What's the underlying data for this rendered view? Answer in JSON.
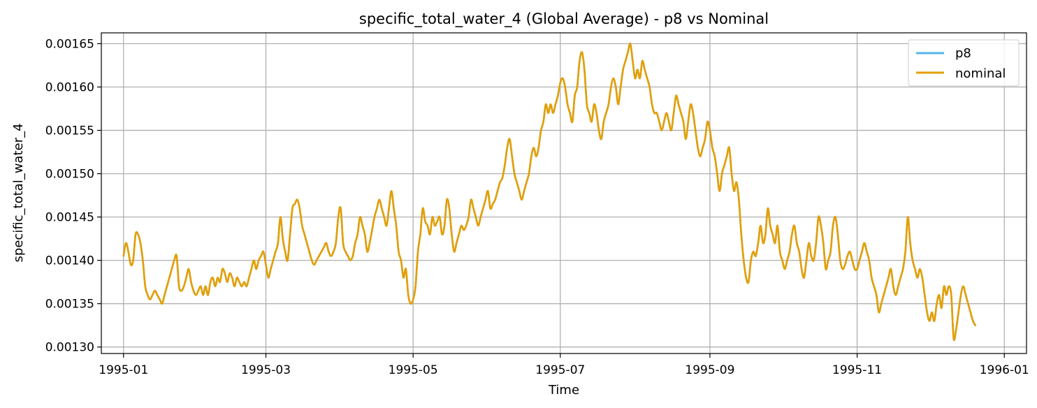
{
  "chart_data": {
    "type": "line",
    "title": "specific_total_water_4 (Global Average) - p8 vs Nominal",
    "xlabel": "Time",
    "ylabel": "specific_total_water_4",
    "xlim": [
      -9.2,
      374.2
    ],
    "ylim": [
      0.0012925,
      0.0016625
    ],
    "grid": true,
    "legend_position": "top-right",
    "x_ticks": [
      {
        "value": 0,
        "label": "1995-01"
      },
      {
        "value": 59,
        "label": "1995-03"
      },
      {
        "value": 120,
        "label": "1995-05"
      },
      {
        "value": 181,
        "label": "1995-07"
      },
      {
        "value": 243,
        "label": "1995-09"
      },
      {
        "value": 304,
        "label": "1995-11"
      },
      {
        "value": 365,
        "label": "1996-01"
      }
    ],
    "y_ticks": [
      {
        "value": 0.0013,
        "label": "0.00130"
      },
      {
        "value": 0.00135,
        "label": "0.00135"
      },
      {
        "value": 0.0014,
        "label": "0.00140"
      },
      {
        "value": 0.00145,
        "label": "0.00145"
      },
      {
        "value": 0.0015,
        "label": "0.00150"
      },
      {
        "value": 0.00155,
        "label": "0.00155"
      },
      {
        "value": 0.0016,
        "label": "0.00160"
      },
      {
        "value": 0.00165,
        "label": "0.00165"
      }
    ],
    "x_unit": "days since 1995-01-01",
    "keypoints": [
      [
        0,
        0.001405
      ],
      [
        1,
        0.00142
      ],
      [
        2,
        0.00141
      ],
      [
        3,
        0.001395
      ],
      [
        4,
        0.0014
      ],
      [
        5,
        0.00143
      ],
      [
        6,
        0.00143
      ],
      [
        7,
        0.00142
      ],
      [
        8,
        0.0014
      ],
      [
        9,
        0.00137
      ],
      [
        10,
        0.00136
      ],
      [
        11,
        0.001355
      ],
      [
        12,
        0.00136
      ],
      [
        13,
        0.001365
      ],
      [
        14,
        0.00136
      ],
      [
        15,
        0.001355
      ],
      [
        16,
        0.00135
      ],
      [
        17,
        0.00136
      ],
      [
        18,
        0.00137
      ],
      [
        19,
        0.00138
      ],
      [
        20,
        0.00139
      ],
      [
        21,
        0.0014
      ],
      [
        22,
        0.001405
      ],
      [
        23,
        0.00137
      ],
      [
        24,
        0.001365
      ],
      [
        25,
        0.00137
      ],
      [
        26,
        0.00138
      ],
      [
        27,
        0.00139
      ],
      [
        28,
        0.001375
      ],
      [
        29,
        0.001365
      ],
      [
        30,
        0.00136
      ],
      [
        31,
        0.001365
      ],
      [
        32,
        0.00137
      ],
      [
        33,
        0.00136
      ],
      [
        34,
        0.00137
      ],
      [
        35,
        0.00136
      ],
      [
        36,
        0.001375
      ],
      [
        37,
        0.00138
      ],
      [
        38,
        0.00137
      ],
      [
        39,
        0.00138
      ],
      [
        40,
        0.001375
      ],
      [
        41,
        0.00139
      ],
      [
        42,
        0.001385
      ],
      [
        43,
        0.001375
      ],
      [
        44,
        0.001385
      ],
      [
        45,
        0.00138
      ],
      [
        46,
        0.00137
      ],
      [
        47,
        0.00138
      ],
      [
        48,
        0.001375
      ],
      [
        49,
        0.00137
      ],
      [
        50,
        0.001375
      ],
      [
        51,
        0.00137
      ],
      [
        52,
        0.00138
      ],
      [
        53,
        0.00139
      ],
      [
        54,
        0.0014
      ],
      [
        55,
        0.00139
      ],
      [
        56,
        0.0014
      ],
      [
        57,
        0.001405
      ],
      [
        58,
        0.00141
      ],
      [
        59,
        0.001395
      ],
      [
        60,
        0.00138
      ],
      [
        61,
        0.00139
      ],
      [
        62,
        0.0014
      ],
      [
        63,
        0.00141
      ],
      [
        64,
        0.00142
      ],
      [
        65,
        0.00145
      ],
      [
        66,
        0.001425
      ],
      [
        67,
        0.00141
      ],
      [
        68,
        0.0014
      ],
      [
        69,
        0.00143
      ],
      [
        70,
        0.00146
      ],
      [
        71,
        0.001465
      ],
      [
        72,
        0.00147
      ],
      [
        73,
        0.00146
      ],
      [
        74,
        0.00144
      ],
      [
        75,
        0.00143
      ],
      [
        76,
        0.00142
      ],
      [
        77,
        0.00141
      ],
      [
        78,
        0.0014
      ],
      [
        79,
        0.001395
      ],
      [
        80,
        0.0014
      ],
      [
        81,
        0.001405
      ],
      [
        82,
        0.00141
      ],
      [
        83,
        0.001415
      ],
      [
        84,
        0.00142
      ],
      [
        85,
        0.00141
      ],
      [
        86,
        0.001405
      ],
      [
        87,
        0.00141
      ],
      [
        88,
        0.00142
      ],
      [
        89,
        0.00145
      ],
      [
        90,
        0.00146
      ],
      [
        91,
        0.00142
      ],
      [
        92,
        0.00141
      ],
      [
        93,
        0.001405
      ],
      [
        94,
        0.0014
      ],
      [
        95,
        0.001405
      ],
      [
        96,
        0.00142
      ],
      [
        97,
        0.00143
      ],
      [
        98,
        0.00145
      ],
      [
        99,
        0.00144
      ],
      [
        100,
        0.00143
      ],
      [
        101,
        0.00141
      ],
      [
        102,
        0.00142
      ],
      [
        103,
        0.001435
      ],
      [
        104,
        0.00145
      ],
      [
        105,
        0.00146
      ],
      [
        106,
        0.00147
      ],
      [
        107,
        0.00146
      ],
      [
        108,
        0.00145
      ],
      [
        109,
        0.00144
      ],
      [
        110,
        0.00146
      ],
      [
        111,
        0.00148
      ],
      [
        112,
        0.00146
      ],
      [
        113,
        0.00144
      ],
      [
        114,
        0.00141
      ],
      [
        115,
        0.0014
      ],
      [
        116,
        0.00138
      ],
      [
        117,
        0.00139
      ],
      [
        118,
        0.00136
      ],
      [
        119,
        0.00135
      ],
      [
        120,
        0.001355
      ],
      [
        121,
        0.00137
      ],
      [
        122,
        0.00141
      ],
      [
        123,
        0.00143
      ],
      [
        124,
        0.00146
      ],
      [
        125,
        0.001445
      ],
      [
        126,
        0.00144
      ],
      [
        127,
        0.00143
      ],
      [
        128,
        0.00145
      ],
      [
        129,
        0.00144
      ],
      [
        130,
        0.001445
      ],
      [
        131,
        0.00145
      ],
      [
        132,
        0.00143
      ],
      [
        133,
        0.00144
      ],
      [
        134,
        0.00147
      ],
      [
        135,
        0.00146
      ],
      [
        136,
        0.00143
      ],
      [
        137,
        0.00141
      ],
      [
        138,
        0.00142
      ],
      [
        139,
        0.00143
      ],
      [
        140,
        0.00144
      ],
      [
        141,
        0.001435
      ],
      [
        142,
        0.00144
      ],
      [
        143,
        0.00145
      ],
      [
        144,
        0.00147
      ],
      [
        145,
        0.00146
      ],
      [
        146,
        0.00145
      ],
      [
        147,
        0.00144
      ],
      [
        148,
        0.00145
      ],
      [
        149,
        0.00146
      ],
      [
        150,
        0.00147
      ],
      [
        151,
        0.00148
      ],
      [
        152,
        0.00146
      ],
      [
        153,
        0.001465
      ],
      [
        154,
        0.00147
      ],
      [
        155,
        0.00148
      ],
      [
        156,
        0.00149
      ],
      [
        157,
        0.001495
      ],
      [
        158,
        0.00151
      ],
      [
        159,
        0.00153
      ],
      [
        160,
        0.00154
      ],
      [
        161,
        0.00152
      ],
      [
        162,
        0.0015
      ],
      [
        163,
        0.00149
      ],
      [
        164,
        0.00148
      ],
      [
        165,
        0.00147
      ],
      [
        166,
        0.00148
      ],
      [
        167,
        0.00149
      ],
      [
        168,
        0.0015
      ],
      [
        169,
        0.00152
      ],
      [
        170,
        0.00153
      ],
      [
        171,
        0.00152
      ],
      [
        172,
        0.00153
      ],
      [
        173,
        0.00155
      ],
      [
        174,
        0.00156
      ],
      [
        175,
        0.00158
      ],
      [
        176,
        0.00157
      ],
      [
        177,
        0.00158
      ],
      [
        178,
        0.00157
      ],
      [
        179,
        0.00158
      ],
      [
        180,
        0.00159
      ],
      [
        181,
        0.001605
      ],
      [
        182,
        0.00161
      ],
      [
        183,
        0.0016
      ],
      [
        184,
        0.00158
      ],
      [
        185,
        0.00157
      ],
      [
        186,
        0.00156
      ],
      [
        187,
        0.00159
      ],
      [
        188,
        0.0016
      ],
      [
        189,
        0.00163
      ],
      [
        190,
        0.00164
      ],
      [
        191,
        0.00162
      ],
      [
        192,
        0.00158
      ],
      [
        193,
        0.00157
      ],
      [
        194,
        0.00156
      ],
      [
        195,
        0.00158
      ],
      [
        196,
        0.00157
      ],
      [
        197,
        0.00155
      ],
      [
        198,
        0.00154
      ],
      [
        199,
        0.00156
      ],
      [
        200,
        0.00157
      ],
      [
        201,
        0.00158
      ],
      [
        202,
        0.0016
      ],
      [
        203,
        0.00161
      ],
      [
        204,
        0.0016
      ],
      [
        205,
        0.00158
      ],
      [
        206,
        0.0016
      ],
      [
        207,
        0.00162
      ],
      [
        208,
        0.00163
      ],
      [
        209,
        0.00164
      ],
      [
        210,
        0.00165
      ],
      [
        211,
        0.00163
      ],
      [
        212,
        0.00161
      ],
      [
        213,
        0.00162
      ],
      [
        214,
        0.00161
      ],
      [
        215,
        0.00163
      ],
      [
        216,
        0.00162
      ],
      [
        217,
        0.00161
      ],
      [
        218,
        0.0016
      ],
      [
        219,
        0.00158
      ],
      [
        220,
        0.00157
      ],
      [
        221,
        0.00157
      ],
      [
        222,
        0.00156
      ],
      [
        223,
        0.00155
      ],
      [
        224,
        0.00156
      ],
      [
        225,
        0.00157
      ],
      [
        226,
        0.00156
      ],
      [
        227,
        0.00155
      ],
      [
        228,
        0.00157
      ],
      [
        229,
        0.00159
      ],
      [
        230,
        0.00158
      ],
      [
        231,
        0.00157
      ],
      [
        232,
        0.00156
      ],
      [
        233,
        0.00154
      ],
      [
        234,
        0.00156
      ],
      [
        235,
        0.00158
      ],
      [
        236,
        0.00157
      ],
      [
        237,
        0.00155
      ],
      [
        238,
        0.00153
      ],
      [
        239,
        0.00152
      ],
      [
        240,
        0.00153
      ],
      [
        241,
        0.00154
      ],
      [
        242,
        0.00156
      ],
      [
        243,
        0.00155
      ],
      [
        244,
        0.00153
      ],
      [
        245,
        0.00152
      ],
      [
        246,
        0.0015
      ],
      [
        247,
        0.00148
      ],
      [
        248,
        0.0015
      ],
      [
        249,
        0.00151
      ],
      [
        250,
        0.00152
      ],
      [
        251,
        0.00153
      ],
      [
        252,
        0.0015
      ],
      [
        253,
        0.00148
      ],
      [
        254,
        0.00149
      ],
      [
        255,
        0.00147
      ],
      [
        256,
        0.00143
      ],
      [
        257,
        0.0014
      ],
      [
        258,
        0.00138
      ],
      [
        259,
        0.001375
      ],
      [
        260,
        0.0014
      ],
      [
        261,
        0.00141
      ],
      [
        262,
        0.001405
      ],
      [
        263,
        0.00142
      ],
      [
        264,
        0.00144
      ],
      [
        265,
        0.00142
      ],
      [
        266,
        0.00143
      ],
      [
        267,
        0.00146
      ],
      [
        268,
        0.00144
      ],
      [
        269,
        0.00143
      ],
      [
        270,
        0.00142
      ],
      [
        271,
        0.00144
      ],
      [
        272,
        0.00141
      ],
      [
        273,
        0.0014
      ],
      [
        274,
        0.00139
      ],
      [
        275,
        0.0014
      ],
      [
        276,
        0.00141
      ],
      [
        277,
        0.00143
      ],
      [
        278,
        0.00144
      ],
      [
        279,
        0.00142
      ],
      [
        280,
        0.00141
      ],
      [
        281,
        0.00139
      ],
      [
        282,
        0.00138
      ],
      [
        283,
        0.0014
      ],
      [
        284,
        0.00142
      ],
      [
        285,
        0.001405
      ],
      [
        286,
        0.0014
      ],
      [
        287,
        0.00142
      ],
      [
        288,
        0.00145
      ],
      [
        289,
        0.00144
      ],
      [
        290,
        0.00142
      ],
      [
        291,
        0.00139
      ],
      [
        292,
        0.0014
      ],
      [
        293,
        0.00141
      ],
      [
        294,
        0.00144
      ],
      [
        295,
        0.00145
      ],
      [
        296,
        0.00143
      ],
      [
        297,
        0.0014
      ],
      [
        298,
        0.00139
      ],
      [
        299,
        0.001395
      ],
      [
        300,
        0.001405
      ],
      [
        301,
        0.00141
      ],
      [
        302,
        0.0014
      ],
      [
        303,
        0.00139
      ],
      [
        304,
        0.00139
      ],
      [
        305,
        0.0014
      ],
      [
        306,
        0.00141
      ],
      [
        307,
        0.00142
      ],
      [
        308,
        0.00141
      ],
      [
        309,
        0.0014
      ],
      [
        310,
        0.00138
      ],
      [
        311,
        0.00137
      ],
      [
        312,
        0.00136
      ],
      [
        313,
        0.00134
      ],
      [
        314,
        0.00135
      ],
      [
        315,
        0.00136
      ],
      [
        316,
        0.00137
      ],
      [
        317,
        0.00138
      ],
      [
        318,
        0.00139
      ],
      [
        319,
        0.00137
      ],
      [
        320,
        0.00136
      ],
      [
        321,
        0.00137
      ],
      [
        322,
        0.00138
      ],
      [
        323,
        0.00139
      ],
      [
        324,
        0.00141
      ],
      [
        325,
        0.00145
      ],
      [
        326,
        0.00142
      ],
      [
        327,
        0.0014
      ],
      [
        328,
        0.00139
      ],
      [
        329,
        0.00138
      ],
      [
        330,
        0.00139
      ],
      [
        331,
        0.00138
      ],
      [
        332,
        0.00136
      ],
      [
        333,
        0.00134
      ],
      [
        334,
        0.00133
      ],
      [
        335,
        0.00134
      ],
      [
        336,
        0.00133
      ],
      [
        337,
        0.00135
      ],
      [
        338,
        0.00136
      ],
      [
        339,
        0.001345
      ],
      [
        340,
        0.00137
      ],
      [
        341,
        0.00136
      ],
      [
        342,
        0.00137
      ],
      [
        343,
        0.00136
      ],
      [
        344,
        0.00131
      ],
      [
        345,
        0.00132
      ],
      [
        346,
        0.00134
      ],
      [
        347,
        0.00136
      ],
      [
        348,
        0.00137
      ],
      [
        349,
        0.00136
      ],
      [
        350,
        0.00135
      ],
      [
        351,
        0.00134
      ],
      [
        352,
        0.00133
      ],
      [
        353,
        0.001325
      ]
    ],
    "series": [
      {
        "name": "p8",
        "color": "#56b4e9",
        "description": "overlaps nominal"
      },
      {
        "name": "nominal",
        "color": "#e69f00"
      }
    ]
  }
}
